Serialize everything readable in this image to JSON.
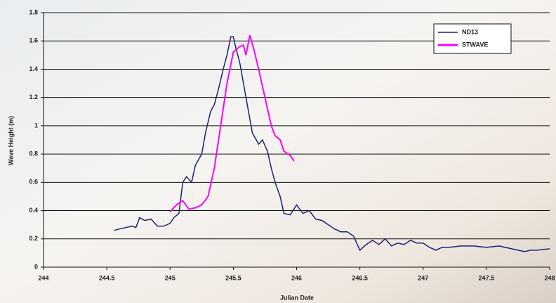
{
  "chart_data": {
    "type": "line",
    "xlabel": "Julian Date",
    "ylabel": "Wave Height (m)",
    "xlim": [
      244,
      248
    ],
    "xticks": [
      244,
      244.5,
      245,
      245.5,
      246,
      246.5,
      247,
      247.5,
      248
    ],
    "ylim": [
      0,
      1.8
    ],
    "yticks": [
      0,
      0.2,
      0.4,
      0.6,
      0.8,
      1,
      1.2,
      1.4,
      1.6,
      1.8
    ],
    "grid": true,
    "legend": "top-right",
    "series": [
      {
        "name": "ND13",
        "color": "#1f1f7a",
        "x": [
          244.56,
          244.6,
          244.65,
          244.7,
          244.73,
          244.76,
          244.8,
          244.85,
          244.9,
          244.95,
          245.0,
          245.03,
          245.07,
          245.1,
          245.13,
          245.17,
          245.2,
          245.25,
          245.28,
          245.32,
          245.35,
          245.38,
          245.42,
          245.45,
          245.48,
          245.5,
          245.52,
          245.55,
          245.58,
          245.62,
          245.65,
          245.7,
          245.73,
          245.77,
          245.8,
          245.83,
          245.87,
          245.9,
          245.95,
          246.0,
          246.05,
          246.1,
          246.15,
          246.2,
          246.25,
          246.3,
          246.35,
          246.4,
          246.45,
          246.5,
          246.55,
          246.6,
          246.65,
          246.7,
          246.75,
          246.8,
          246.85,
          246.9,
          246.95,
          247.0,
          247.05,
          247.1,
          247.15,
          247.2,
          247.3,
          247.4,
          247.5,
          247.6,
          247.7,
          247.8,
          247.85,
          247.9,
          248.0
        ],
        "values": [
          0.26,
          0.27,
          0.28,
          0.29,
          0.28,
          0.35,
          0.33,
          0.34,
          0.29,
          0.29,
          0.31,
          0.35,
          0.38,
          0.6,
          0.64,
          0.6,
          0.72,
          0.8,
          0.95,
          1.1,
          1.15,
          1.25,
          1.4,
          1.5,
          1.63,
          1.63,
          1.55,
          1.45,
          1.3,
          1.1,
          0.95,
          0.87,
          0.9,
          0.82,
          0.7,
          0.6,
          0.5,
          0.38,
          0.37,
          0.44,
          0.38,
          0.4,
          0.34,
          0.33,
          0.3,
          0.27,
          0.25,
          0.25,
          0.22,
          0.12,
          0.16,
          0.19,
          0.16,
          0.2,
          0.15,
          0.17,
          0.16,
          0.19,
          0.17,
          0.17,
          0.14,
          0.12,
          0.14,
          0.14,
          0.15,
          0.15,
          0.14,
          0.15,
          0.13,
          0.11,
          0.12,
          0.12,
          0.13
        ]
      },
      {
        "name": "STWAVE",
        "color": "#ff00ff",
        "x": [
          245.0,
          245.05,
          245.1,
          245.15,
          245.2,
          245.25,
          245.3,
          245.35,
          245.4,
          245.45,
          245.5,
          245.55,
          245.58,
          245.6,
          245.63,
          245.66,
          245.7,
          245.75,
          245.8,
          245.83,
          245.87,
          245.9,
          245.95,
          245.98
        ],
        "values": [
          0.39,
          0.44,
          0.47,
          0.41,
          0.42,
          0.44,
          0.5,
          0.7,
          1.0,
          1.3,
          1.52,
          1.56,
          1.57,
          1.5,
          1.64,
          1.55,
          1.4,
          1.2,
          1.0,
          0.93,
          0.9,
          0.82,
          0.79,
          0.75
        ]
      }
    ]
  }
}
